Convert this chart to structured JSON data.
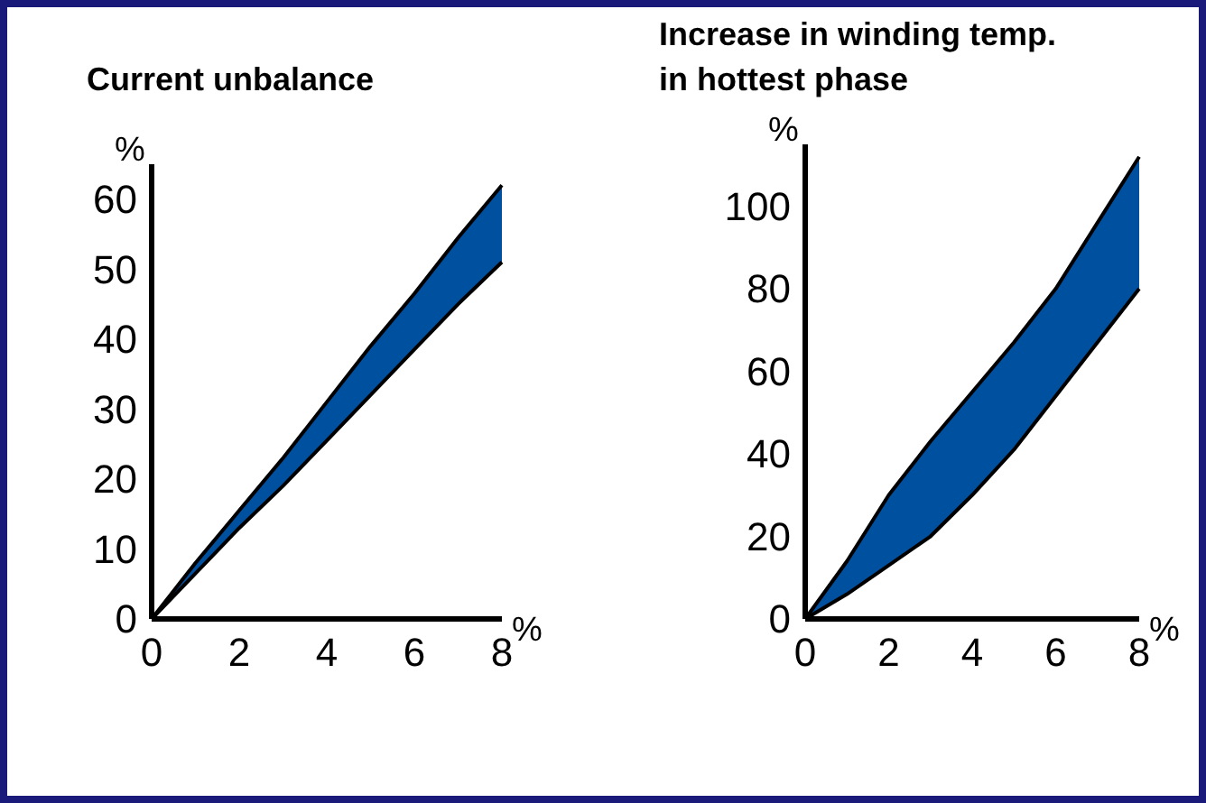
{
  "chart_data": [
    {
      "type": "area",
      "title": "Current unbalance",
      "xlabel": "%",
      "ylabel": "%",
      "x": [
        0,
        1,
        2,
        3,
        4,
        5,
        6,
        7,
        8
      ],
      "xlim": [
        0,
        8
      ],
      "xticks": [
        0,
        2,
        4,
        6,
        8
      ],
      "ylim": [
        0,
        65
      ],
      "yticks": [
        0,
        10,
        20,
        30,
        40,
        50,
        60
      ],
      "stacked": true,
      "series": [
        {
          "color": "#ffffff",
          "values": [
            0,
            6.5,
            13,
            19,
            25.5,
            32,
            38.5,
            45,
            51
          ]
        },
        {
          "color": "#0050a0",
          "values": [
            0,
            1.5,
            2.5,
            4,
            5.5,
            7,
            8,
            9.5,
            11
          ]
        }
      ]
    },
    {
      "type": "area",
      "title": "Increase in winding temp. in hottest phase",
      "xlabel": "%",
      "ylabel": "%",
      "x": [
        0,
        1,
        2,
        3,
        4,
        5,
        6,
        7,
        8
      ],
      "xlim": [
        0,
        8
      ],
      "xticks": [
        0,
        2,
        4,
        6,
        8
      ],
      "ylim": [
        0,
        115
      ],
      "yticks": [
        0,
        20,
        40,
        60,
        80,
        100
      ],
      "stacked": true,
      "series": [
        {
          "color": "#ffffff",
          "values": [
            0,
            6,
            13,
            20,
            30,
            41,
            54,
            67,
            80
          ]
        },
        {
          "color": "#0050a0",
          "values": [
            0,
            8,
            17,
            23,
            25,
            26,
            26,
            29,
            32
          ]
        }
      ]
    }
  ]
}
